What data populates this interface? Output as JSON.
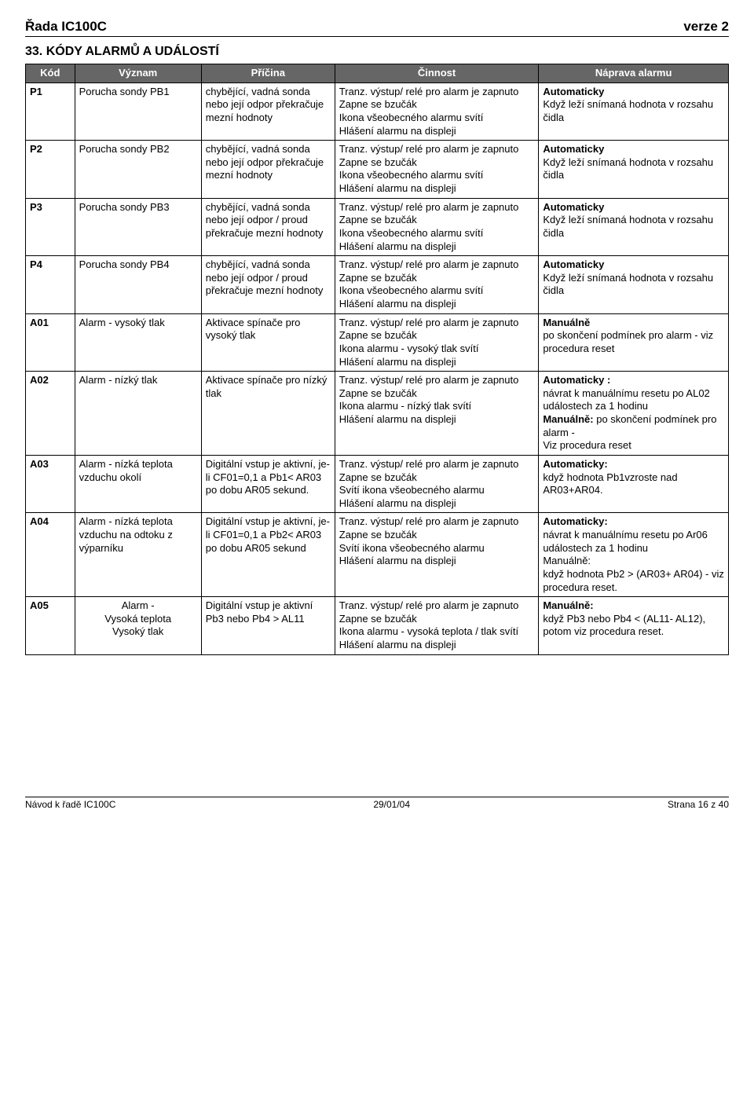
{
  "header": {
    "left": "Řada IC100C",
    "right": "verze 2"
  },
  "section_title": {
    "num": "33.",
    "text": "KÓDY ALARMŮ A UDÁLOSTÍ"
  },
  "columns": {
    "code": "Kód",
    "meaning": "Význam",
    "cause": "Příčina",
    "activity": "Činnost",
    "fix": "Náprava alarmu"
  },
  "rows": [
    {
      "code": "P1",
      "meaning": "Porucha sondy PB1",
      "cause": "chybějící, vadná sonda nebo její odpor překračuje mezní hodnoty",
      "activity": "Tranz. výstup/ relé pro alarm je zapnuto\nZapne se bzučák\nIkona všeobecného alarmu svítí\nHlášení alarmu na displeji",
      "fix_bold": "Automaticky",
      "fix_rest": "Když leží snímaná hodnota v rozsahu čidla"
    },
    {
      "code": "P2",
      "meaning": "Porucha sondy PB2",
      "cause": "chybějící, vadná sonda nebo její odpor překračuje mezní hodnoty",
      "activity": "Tranz. výstup/ relé pro alarm je zapnuto\nZapne se bzučák\nIkona všeobecného alarmu svítí\nHlášení alarmu na displeji",
      "fix_bold": "Automaticky",
      "fix_rest": "Když leží snímaná hodnota v rozsahu čidla"
    },
    {
      "code": "P3",
      "meaning": "Porucha sondy PB3",
      "cause": "chybějící, vadná sonda nebo její odpor / proud překračuje mezní hodnoty",
      "activity": "Tranz. výstup/ relé pro alarm je zapnuto\nZapne se bzučák\nIkona všeobecného alarmu svítí\nHlášení alarmu na displeji",
      "fix_bold": "Automaticky",
      "fix_rest": "Když leží snímaná hodnota v rozsahu čidla"
    },
    {
      "code": "P4",
      "meaning": "Porucha sondy PB4",
      "cause": "chybějící, vadná sonda nebo její odpor / proud překračuje mezní hodnoty",
      "activity": "Tranz. výstup/ relé pro alarm je zapnuto\nZapne se bzučák\nIkona všeobecného alarmu svítí\nHlášení alarmu na displeji",
      "fix_bold": "Automaticky",
      "fix_rest": "Když leží snímaná hodnota v rozsahu čidla"
    },
    {
      "code": "A01",
      "meaning": "Alarm - vysoký tlak",
      "cause": "Aktivace spínače pro vysoký tlak",
      "activity": "Tranz. výstup/ relé pro alarm je zapnuto\nZapne se bzučák\nIkona alarmu - vysoký tlak svítí\nHlášení alarmu na displeji",
      "fix_bold": "Manuálně",
      "fix_rest": "po skončení podmínek pro alarm - viz procedura reset"
    },
    {
      "code": "A02",
      "meaning": "Alarm - nízký tlak",
      "cause": "Aktivace spínače pro nízký tlak",
      "activity": "Tranz. výstup/ relé pro alarm je zapnuto\nZapne se bzučák\nIkona alarmu - nízký tlak svítí\nHlášení alarmu na displeji",
      "fix_html": "<b>Automaticky :</b><br>návrat k manuálnímu resetu po AL02 událostech za 1 hodinu<br><b>Manuálně:</b> po skončení podmínek pro alarm -<br>Viz procedura reset"
    },
    {
      "code": "A03",
      "meaning": "Alarm - nízká teplota vzduchu okolí",
      "cause": "Digitální vstup je aktivní, je-li CF01=0,1 a Pb1< AR03 po dobu AR05 sekund.",
      "cause_just": true,
      "activity": "Tranz. výstup/ relé pro alarm je zapnuto\nZapne se bzučák\nSvítí ikona všeobecného alarmu\nHlášení alarmu na displeji",
      "fix_bold": "Automaticky:",
      "fix_rest": "když hodnota Pb1vzroste nad AR03+AR04."
    },
    {
      "code": "A04",
      "meaning": "Alarm - nízká teplota vzduchu na odtoku z výparníku",
      "cause": "Digitální vstup je aktivní, je-li CF01=0,1 a Pb2< AR03 po dobu AR05 sekund",
      "cause_just": true,
      "activity": "Tranz. výstup/ relé pro alarm je zapnuto\nZapne se bzučák\nSvítí ikona všeobecného alarmu\nHlášení alarmu na displeji",
      "fix_html": "<b>Automaticky:</b><br>návrat k manuálnímu resetu po Ar06 událostech za 1 hodinu<br>Manuálně:<br>když hodnota Pb2 > (AR03+ AR04) - viz procedura reset."
    },
    {
      "code": "A05",
      "meaning": "Alarm -\nVysoká teplota\nVysoký tlak",
      "cause": "Digitální vstup je aktivní\nPb3 nebo Pb4 > AL11",
      "cause_just": true,
      "activity": "Tranz. výstup/ relé pro alarm je zapnuto\nZapne se bzučák\nIkona alarmu - vysoká teplota / tlak svítí\nHlášení alarmu na displeji",
      "fix_html": "<b>Manuálně:</b><br>když Pb3 nebo Pb4 < (AL11- AL12), potom viz procedura reset.",
      "fix_just": true
    }
  ],
  "footer": {
    "left": "Návod k řadě  IC100C",
    "center": "29/01/04",
    "right": "Strana 16 z 40"
  }
}
